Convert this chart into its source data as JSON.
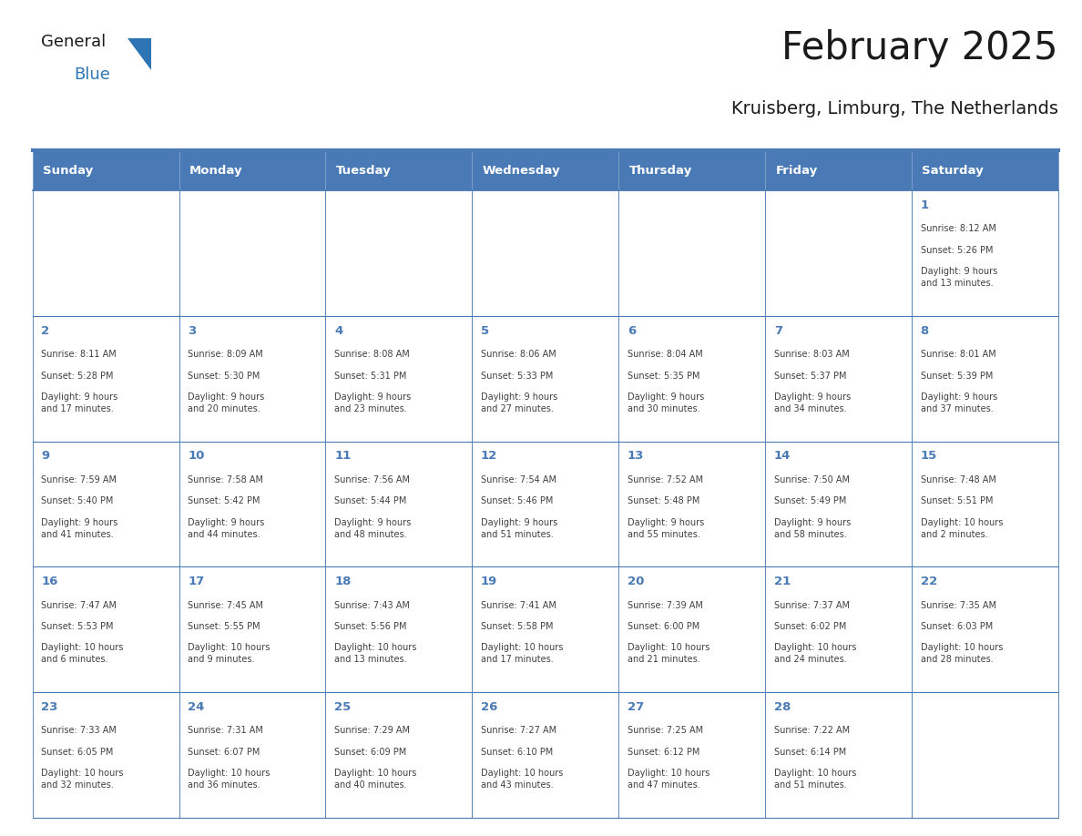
{
  "title": "February 2025",
  "subtitle": "Kruisberg, Limburg, The Netherlands",
  "days_of_week": [
    "Sunday",
    "Monday",
    "Tuesday",
    "Wednesday",
    "Thursday",
    "Friday",
    "Saturday"
  ],
  "header_bg": "#4a7ab5",
  "header_text": "#FFFFFF",
  "cell_bg": "#FFFFFF",
  "cell_border": "#4a7ab5",
  "day_number_color": "#4a7ab5",
  "info_text_color": "#404040",
  "title_color": "#1a1a1a",
  "subtitle_color": "#1a1a1a",
  "logo_general_color": "#1a1a1a",
  "logo_blue_color": "#2E75B6",
  "divider_color": "#4a7ab5",
  "calendar_data": [
    [
      null,
      null,
      null,
      null,
      null,
      null,
      {
        "day": 1,
        "sunrise": "8:12 AM",
        "sunset": "5:26 PM",
        "daylight": "9 hours\nand 13 minutes."
      }
    ],
    [
      {
        "day": 2,
        "sunrise": "8:11 AM",
        "sunset": "5:28 PM",
        "daylight": "9 hours\nand 17 minutes."
      },
      {
        "day": 3,
        "sunrise": "8:09 AM",
        "sunset": "5:30 PM",
        "daylight": "9 hours\nand 20 minutes."
      },
      {
        "day": 4,
        "sunrise": "8:08 AM",
        "sunset": "5:31 PM",
        "daylight": "9 hours\nand 23 minutes."
      },
      {
        "day": 5,
        "sunrise": "8:06 AM",
        "sunset": "5:33 PM",
        "daylight": "9 hours\nand 27 minutes."
      },
      {
        "day": 6,
        "sunrise": "8:04 AM",
        "sunset": "5:35 PM",
        "daylight": "9 hours\nand 30 minutes."
      },
      {
        "day": 7,
        "sunrise": "8:03 AM",
        "sunset": "5:37 PM",
        "daylight": "9 hours\nand 34 minutes."
      },
      {
        "day": 8,
        "sunrise": "8:01 AM",
        "sunset": "5:39 PM",
        "daylight": "9 hours\nand 37 minutes."
      }
    ],
    [
      {
        "day": 9,
        "sunrise": "7:59 AM",
        "sunset": "5:40 PM",
        "daylight": "9 hours\nand 41 minutes."
      },
      {
        "day": 10,
        "sunrise": "7:58 AM",
        "sunset": "5:42 PM",
        "daylight": "9 hours\nand 44 minutes."
      },
      {
        "day": 11,
        "sunrise": "7:56 AM",
        "sunset": "5:44 PM",
        "daylight": "9 hours\nand 48 minutes."
      },
      {
        "day": 12,
        "sunrise": "7:54 AM",
        "sunset": "5:46 PM",
        "daylight": "9 hours\nand 51 minutes."
      },
      {
        "day": 13,
        "sunrise": "7:52 AM",
        "sunset": "5:48 PM",
        "daylight": "9 hours\nand 55 minutes."
      },
      {
        "day": 14,
        "sunrise": "7:50 AM",
        "sunset": "5:49 PM",
        "daylight": "9 hours\nand 58 minutes."
      },
      {
        "day": 15,
        "sunrise": "7:48 AM",
        "sunset": "5:51 PM",
        "daylight": "10 hours\nand 2 minutes."
      }
    ],
    [
      {
        "day": 16,
        "sunrise": "7:47 AM",
        "sunset": "5:53 PM",
        "daylight": "10 hours\nand 6 minutes."
      },
      {
        "day": 17,
        "sunrise": "7:45 AM",
        "sunset": "5:55 PM",
        "daylight": "10 hours\nand 9 minutes."
      },
      {
        "day": 18,
        "sunrise": "7:43 AM",
        "sunset": "5:56 PM",
        "daylight": "10 hours\nand 13 minutes."
      },
      {
        "day": 19,
        "sunrise": "7:41 AM",
        "sunset": "5:58 PM",
        "daylight": "10 hours\nand 17 minutes."
      },
      {
        "day": 20,
        "sunrise": "7:39 AM",
        "sunset": "6:00 PM",
        "daylight": "10 hours\nand 21 minutes."
      },
      {
        "day": 21,
        "sunrise": "7:37 AM",
        "sunset": "6:02 PM",
        "daylight": "10 hours\nand 24 minutes."
      },
      {
        "day": 22,
        "sunrise": "7:35 AM",
        "sunset": "6:03 PM",
        "daylight": "10 hours\nand 28 minutes."
      }
    ],
    [
      {
        "day": 23,
        "sunrise": "7:33 AM",
        "sunset": "6:05 PM",
        "daylight": "10 hours\nand 32 minutes."
      },
      {
        "day": 24,
        "sunrise": "7:31 AM",
        "sunset": "6:07 PM",
        "daylight": "10 hours\nand 36 minutes."
      },
      {
        "day": 25,
        "sunrise": "7:29 AM",
        "sunset": "6:09 PM",
        "daylight": "10 hours\nand 40 minutes."
      },
      {
        "day": 26,
        "sunrise": "7:27 AM",
        "sunset": "6:10 PM",
        "daylight": "10 hours\nand 43 minutes."
      },
      {
        "day": 27,
        "sunrise": "7:25 AM",
        "sunset": "6:12 PM",
        "daylight": "10 hours\nand 47 minutes."
      },
      {
        "day": 28,
        "sunrise": "7:22 AM",
        "sunset": "6:14 PM",
        "daylight": "10 hours\nand 51 minutes."
      },
      null
    ]
  ]
}
